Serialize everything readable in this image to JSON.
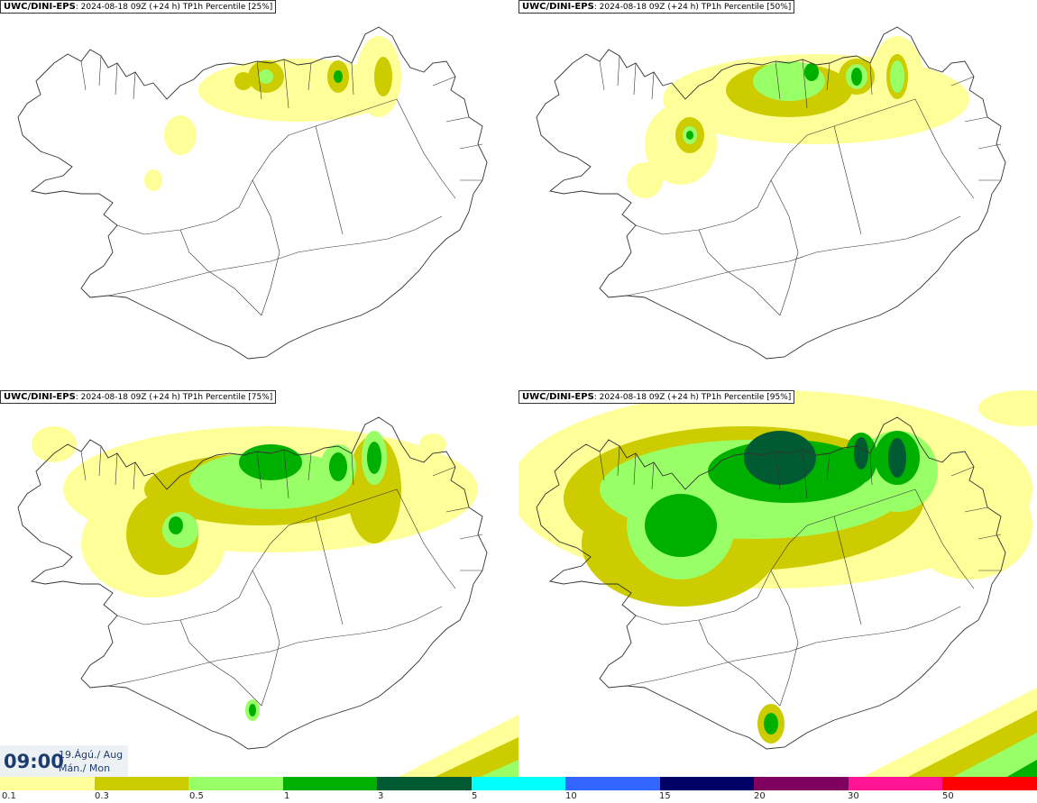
{
  "panels": [
    {
      "source": "UWC/DINI-EPS",
      "run": "2024-08-18 09Z (+24 h)",
      "param": "TP1h Percentile",
      "pct": "[25%]"
    },
    {
      "source": "UWC/DINI-EPS",
      "run": "2024-08-18 09Z (+24 h)",
      "param": "TP1h Percentile",
      "pct": "[50%]"
    },
    {
      "source": "UWC/DINI-EPS",
      "run": "2024-08-18 09Z (+24 h)",
      "param": "TP1h Percentile",
      "pct": "[75%]"
    },
    {
      "source": "UWC/DINI-EPS",
      "run": "2024-08-18 09Z (+24 h)",
      "param": "TP1h Percentile",
      "pct": "[95%]"
    }
  ],
  "valid_time": {
    "time": "09:00",
    "date_line1": "19.Ágú./ Aug",
    "date_line2": "Mán./ Mon"
  },
  "legend": {
    "labels": [
      "0.1",
      "0.3",
      "0.5",
      "1",
      "3",
      "5",
      "10",
      "15",
      "20",
      "30",
      "50"
    ],
    "colors": [
      "#ffff99",
      "#cccc00",
      "#99ff66",
      "#00b000",
      "#005a32",
      "#00ffff",
      "#3366ff",
      "#000066",
      "#800060",
      "#ff1493",
      "#ff0000"
    ]
  },
  "colors": {
    "outline": "#333333",
    "title_text": "#1d3c6e",
    "time_bg": "#eef1f4"
  }
}
